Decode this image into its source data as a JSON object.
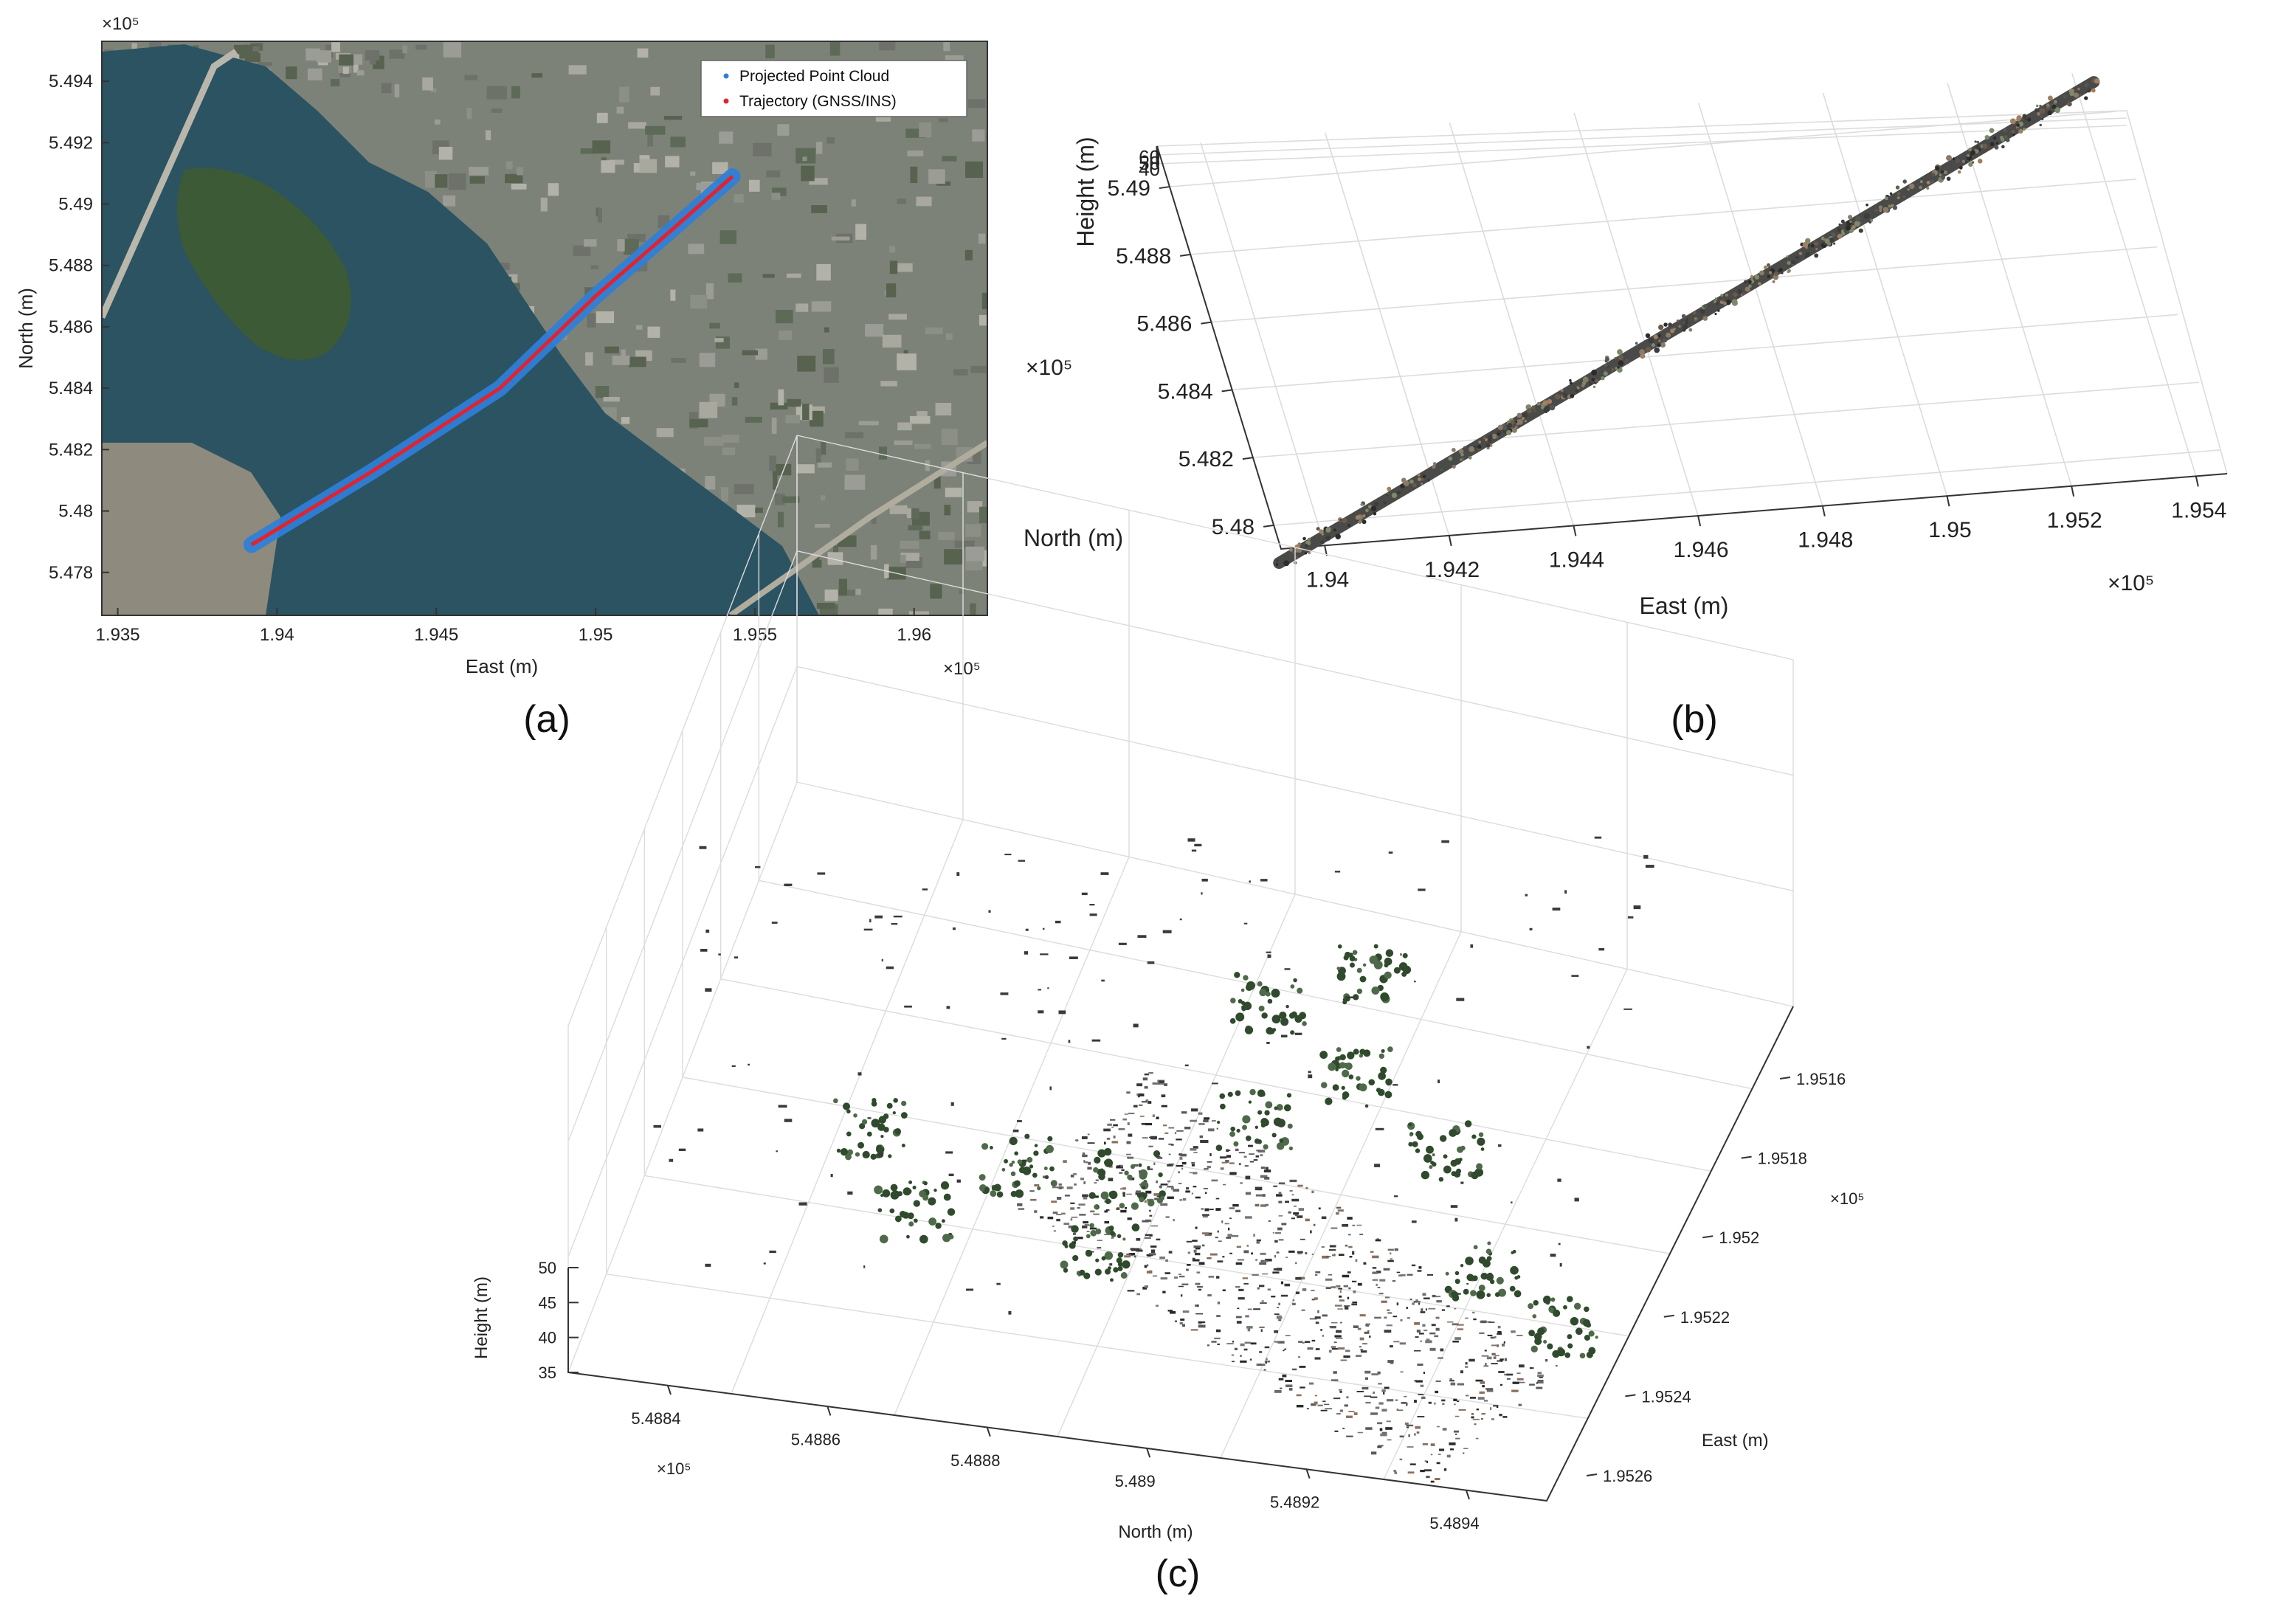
{
  "panels": {
    "a": {
      "caption": "(a)"
    },
    "b": {
      "caption": "(b)"
    },
    "c": {
      "caption": "(c)"
    }
  },
  "colors": {
    "water": "#2b5362",
    "water_dark": "#1f4250",
    "island": "#3c5a35",
    "urban": "#7d8279",
    "point_cloud": "#2f7fd8",
    "trajectory": "#e0232f",
    "cloud_gray": "#5a5a5a",
    "cloud_tree": "#2f4a2c",
    "axis": "#333333",
    "grid": "#dcdcdc"
  },
  "chart_data": [
    {
      "panel": "a",
      "type": "scatter",
      "title": "",
      "xlabel": "East (m)",
      "ylabel": "North (m)",
      "x_exponent": "×10⁵",
      "y_exponent": "×10⁵",
      "xlim": [
        1.9345,
        1.9623
      ],
      "ylim": [
        5.4766,
        5.4953
      ],
      "x_ticks": [
        1.935,
        1.94,
        1.945,
        1.95,
        1.955,
        1.96
      ],
      "x_tick_labels": [
        "1.935",
        "1.94",
        "1.945",
        "1.95",
        "1.955",
        "1.96"
      ],
      "y_ticks": [
        5.478,
        5.48,
        5.482,
        5.484,
        5.486,
        5.488,
        5.49,
        5.492,
        5.494
      ],
      "y_tick_labels": [
        "5.478",
        "5.48",
        "5.482",
        "5.484",
        "5.486",
        "5.488",
        "5.49",
        "5.492",
        "5.494"
      ],
      "background": "satellite image",
      "legend_position": "top-right",
      "series": [
        {
          "name": "Projected Point Cloud",
          "color": "#2f7fd8",
          "x": [
            1.9392,
            1.943,
            1.947,
            1.95,
            1.952,
            1.9543
          ],
          "y": [
            5.4789,
            5.4813,
            5.484,
            5.487,
            5.4888,
            5.4909
          ]
        },
        {
          "name": "Trajectory (GNSS/INS)",
          "color": "#e0232f",
          "x": [
            1.9392,
            1.943,
            1.947,
            1.95,
            1.952,
            1.9543
          ],
          "y": [
            5.4789,
            5.4813,
            5.484,
            5.487,
            5.4888,
            5.4909
          ]
        }
      ]
    },
    {
      "panel": "b",
      "type": "scatter",
      "title": "",
      "xlabel": "East (m)",
      "ylabel": "North (m)",
      "zlabel": "Height (m)",
      "x_exponent": "×10⁵",
      "y_exponent": "×10⁵",
      "x_ticks": [
        1.94,
        1.942,
        1.944,
        1.946,
        1.948,
        1.95,
        1.952,
        1.954
      ],
      "x_tick_labels": [
        "1.94",
        "1.942",
        "1.944",
        "1.946",
        "1.948",
        "1.95",
        "1.952",
        "1.954"
      ],
      "y_ticks": [
        5.48,
        5.482,
        5.484,
        5.486,
        5.488,
        5.49
      ],
      "y_tick_labels": [
        "5.48",
        "5.482",
        "5.484",
        "5.486",
        "5.488",
        "5.49"
      ],
      "z_tick_labels": [
        "60",
        "50",
        "40"
      ],
      "grid": true,
      "series": [
        {
          "name": "",
          "x": [
            1.9392,
            1.9543
          ],
          "y": [
            5.4789,
            5.4909
          ]
        }
      ]
    },
    {
      "panel": "c",
      "type": "scatter",
      "title": "",
      "xlabel": "North (m)",
      "ylabel": "East (m)",
      "zlabel": "Height (m)",
      "x_exponent": "×10⁵",
      "y_exponent": "×10⁵",
      "x_ticks": [
        5.4884,
        5.4886,
        5.4888,
        5.489,
        5.4892,
        5.4894
      ],
      "x_tick_labels": [
        "5.4884",
        "5.4886",
        "5.4888",
        "5.489",
        "5.4892",
        "5.4894"
      ],
      "y_ticks": [
        1.9516,
        1.9518,
        1.952,
        1.9522,
        1.9524,
        1.9526
      ],
      "y_tick_labels": [
        "1.9516",
        "1.9518",
        "1.952",
        "1.9522",
        "1.9524",
        "1.9526"
      ],
      "z_ticks": [
        35,
        40,
        45,
        50
      ],
      "z_tick_labels": [
        "35",
        "40",
        "45",
        "50"
      ],
      "grid": true
    }
  ]
}
